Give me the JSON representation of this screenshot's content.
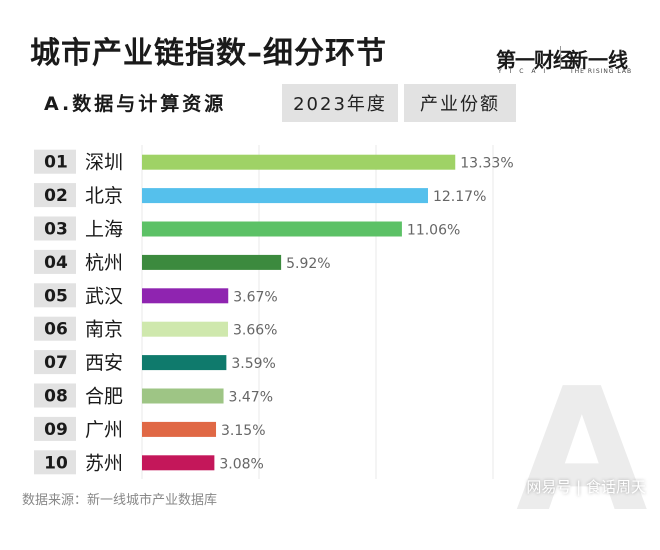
{
  "header": {
    "title": "城市产业链指数–细分环节",
    "logo_a": "第一财经",
    "logo_a_sub": "Y I C A I",
    "logo_b": "新一线",
    "logo_b_sub": "THE RISING LAB",
    "section": "A.数据与计算资源",
    "year_tag": "2023年度",
    "metric_tag": "产业份额"
  },
  "footer": {
    "source": "数据来源：新一线城市产业数据库",
    "watermark": "网易号 | 食话周天",
    "big_letter": "A"
  },
  "chart_data": {
    "type": "bar",
    "orientation": "horizontal",
    "ranks": [
      "01",
      "02",
      "03",
      "04",
      "05",
      "06",
      "07",
      "08",
      "09",
      "10"
    ],
    "categories": [
      "深圳",
      "北京",
      "上海",
      "杭州",
      "武汉",
      "南京",
      "西安",
      "合肥",
      "广州",
      "苏州"
    ],
    "values": [
      13.33,
      12.17,
      11.06,
      5.92,
      3.67,
      3.66,
      3.59,
      3.47,
      3.15,
      3.08
    ],
    "value_labels": [
      "13.33%",
      "12.17%",
      "11.06%",
      "5.92%",
      "3.67%",
      "3.66%",
      "3.59%",
      "3.47%",
      "3.15%",
      "3.08%"
    ],
    "colors": [
      "#9fd266",
      "#55c0ec",
      "#5cc166",
      "#3c8a3e",
      "#8f24b0",
      "#cfe8ad",
      "#0f7a6c",
      "#9ec585",
      "#e06845",
      "#c4175a"
    ],
    "xlim": [
      0,
      14
    ],
    "grid": true
  }
}
